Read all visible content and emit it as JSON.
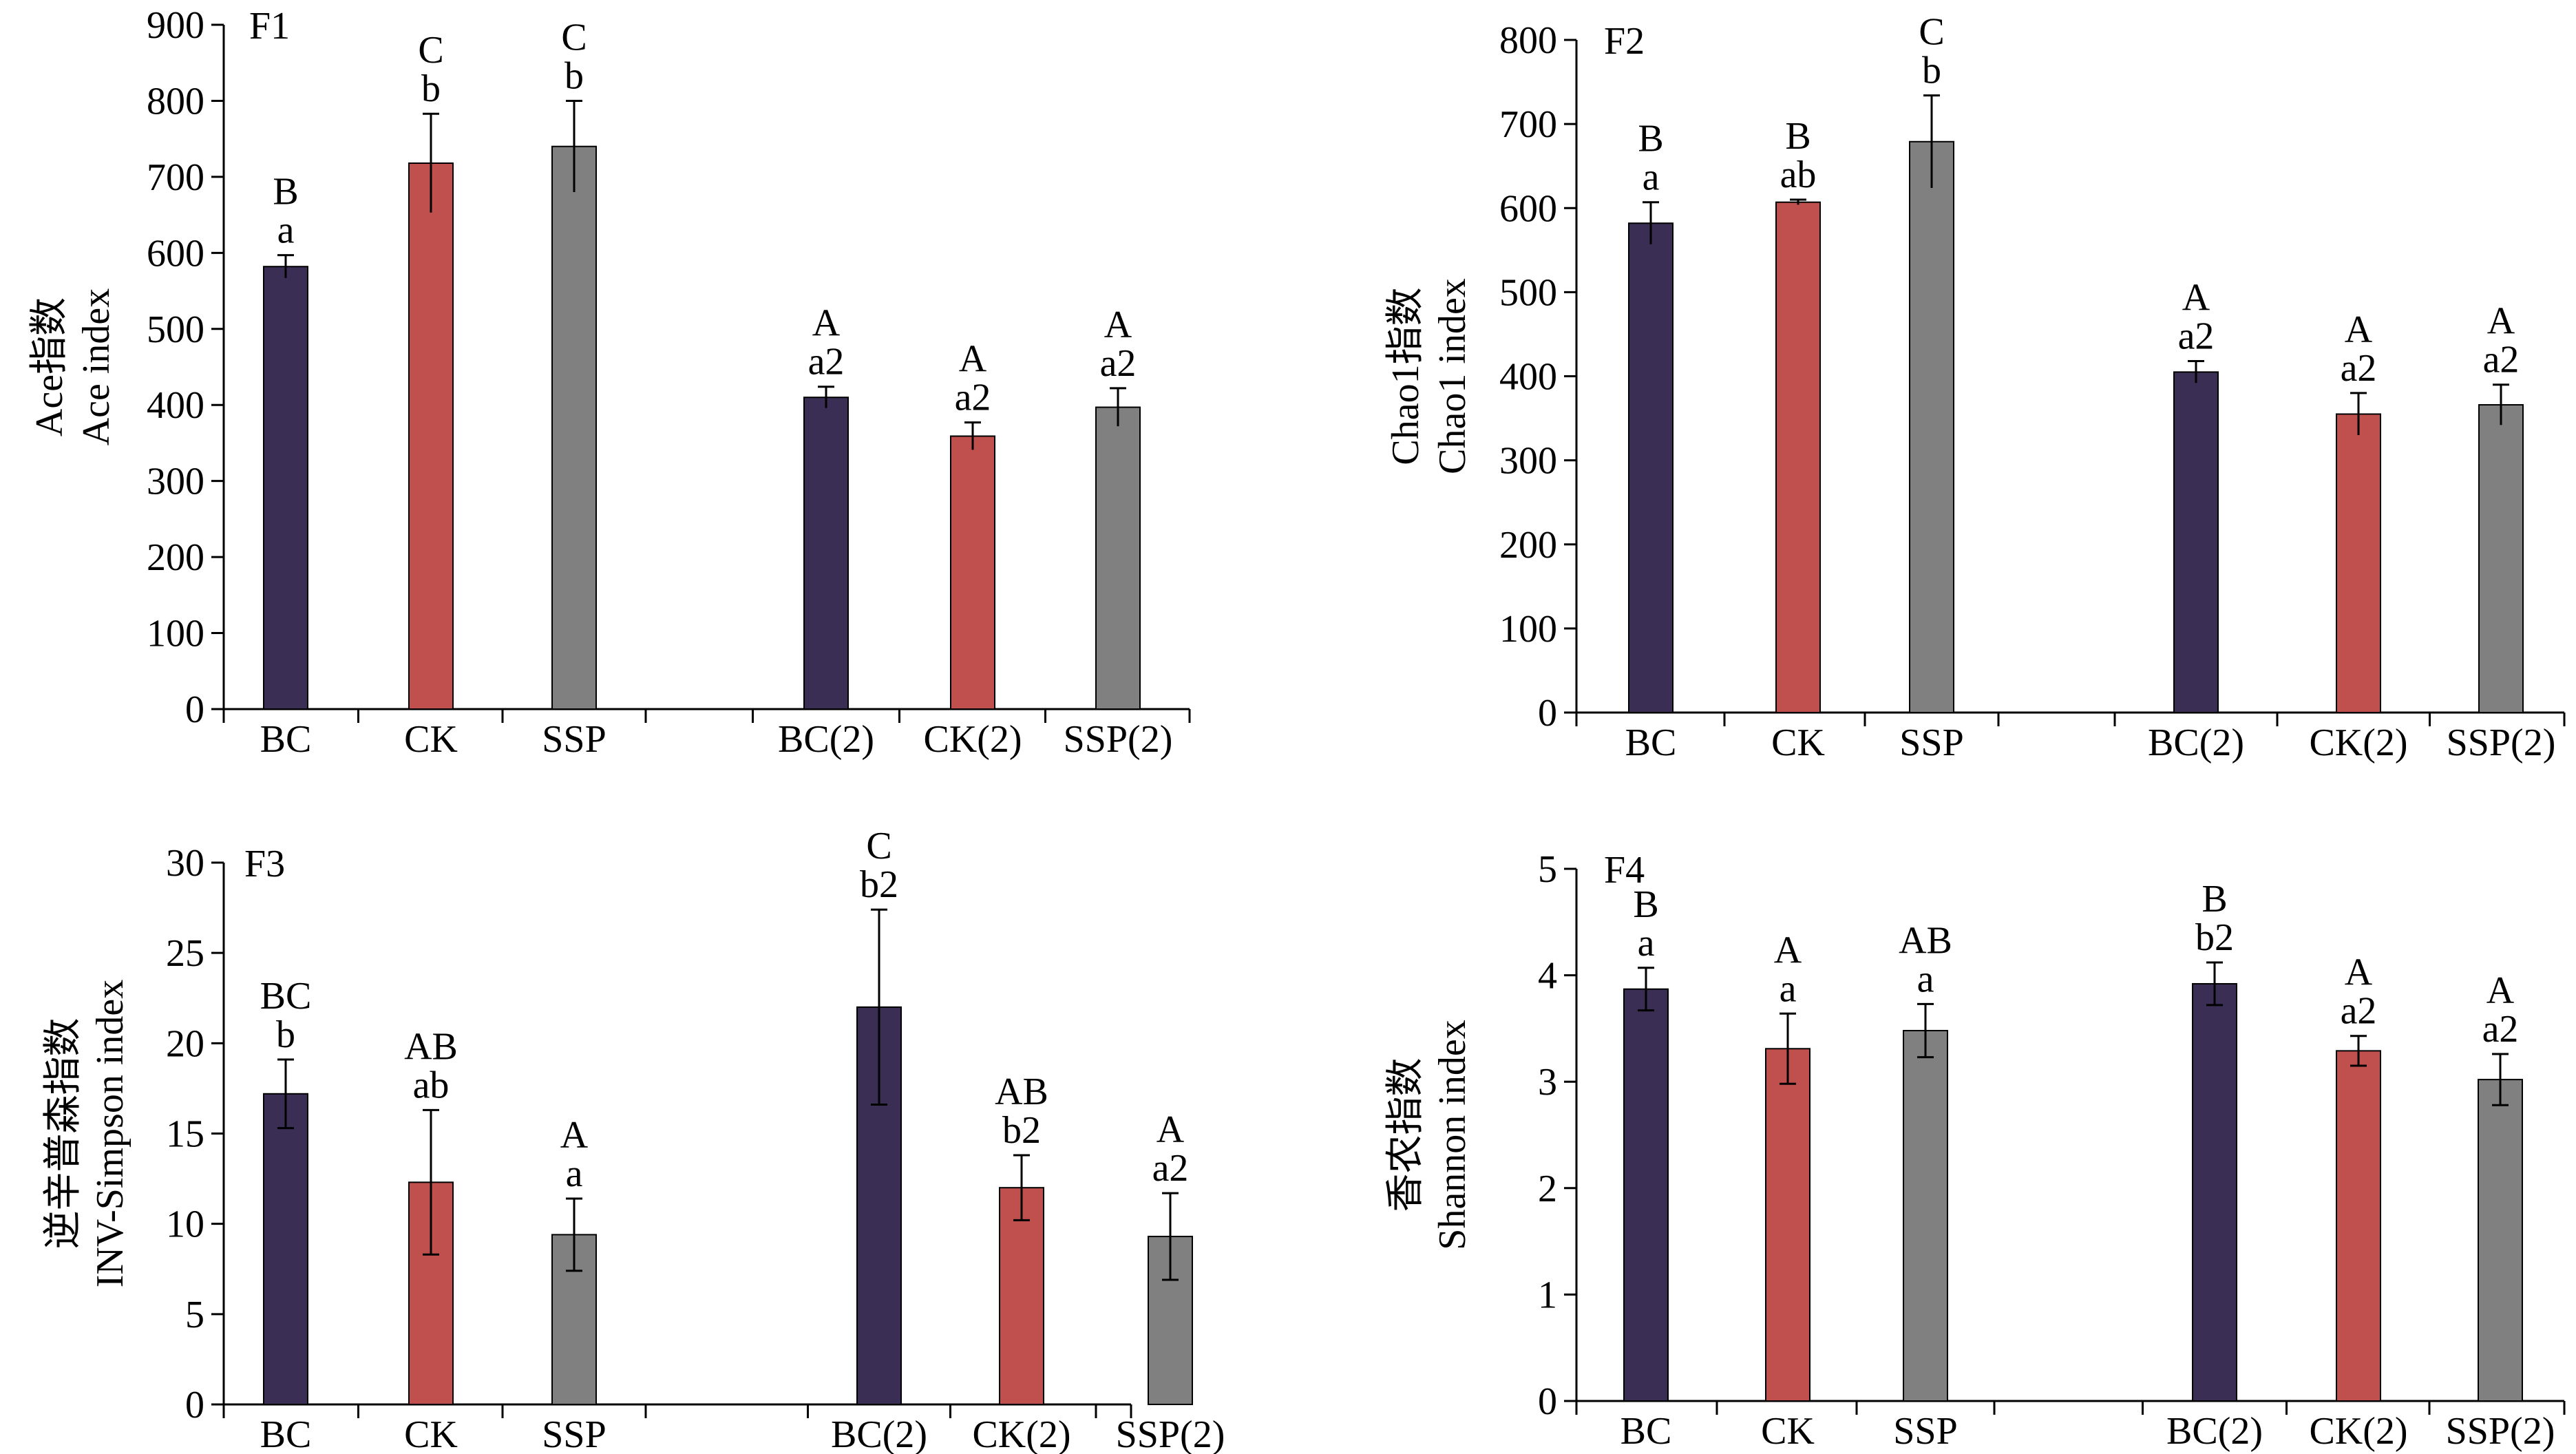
{
  "colors": {
    "BC": "#3b2e54",
    "CK": "#c0504d",
    "SSP": "#808080"
  },
  "chart_data": [
    {
      "type": "bar",
      "panel": "F1",
      "ylabel": [
        "Ace指数",
        "Ace index"
      ],
      "ylim": [
        0,
        900
      ],
      "yticks": [
        0,
        100,
        200,
        300,
        400,
        500,
        600,
        700,
        800,
        900
      ],
      "categories": [
        "BC",
        "CK",
        "SSP",
        "BC(2)",
        "CK(2)",
        "SSP(2)"
      ],
      "values": [
        582,
        718,
        740,
        410,
        359,
        397
      ],
      "errors": [
        15,
        65,
        60,
        14,
        18,
        25
      ],
      "letters": [
        [
          "B",
          "a"
        ],
        [
          "C",
          "b"
        ],
        [
          "C",
          "b"
        ],
        [
          "A",
          "a2"
        ],
        [
          "A",
          "a2"
        ],
        [
          "A",
          "a2"
        ]
      ]
    },
    {
      "type": "bar",
      "panel": "F2",
      "ylabel": [
        "Chao1指数",
        "Chao1 index"
      ],
      "ylim": [
        0,
        800
      ],
      "yticks": [
        0,
        100,
        200,
        300,
        400,
        500,
        600,
        700,
        800
      ],
      "categories": [
        "BC",
        "CK",
        "SSP",
        "BC(2)",
        "CK(2)",
        "SSP(2)"
      ],
      "values": [
        582,
        607,
        679,
        405,
        355,
        366
      ],
      "errors": [
        25,
        3,
        55,
        13,
        25,
        24
      ],
      "letters": [
        [
          "B",
          "a"
        ],
        [
          "B",
          "ab"
        ],
        [
          "C",
          "b"
        ],
        [
          "A",
          "a2"
        ],
        [
          "A",
          "a2"
        ],
        [
          "A",
          "a2"
        ]
      ]
    },
    {
      "type": "bar",
      "panel": "F3",
      "ylabel": [
        "逆辛普森指数",
        "INV-Simpson index"
      ],
      "ylim": [
        0,
        30
      ],
      "yticks": [
        0,
        5,
        10,
        15,
        20,
        25,
        30
      ],
      "categories": [
        "BC",
        "CK",
        "SSP",
        "BC(2)",
        "CK(2)",
        "SSP(2)"
      ],
      "values": [
        17.2,
        12.3,
        9.4,
        22,
        12,
        9.3
      ],
      "errors": [
        1.9,
        4.0,
        2.0,
        5.4,
        1.8,
        2.4
      ],
      "letters": [
        [
          "BC",
          "b"
        ],
        [
          "AB",
          "ab"
        ],
        [
          "A",
          "a"
        ],
        [
          "C",
          "b2"
        ],
        [
          "AB",
          "b2"
        ],
        [
          "A",
          "a2"
        ]
      ]
    },
    {
      "type": "bar",
      "panel": "F4",
      "ylabel": [
        "香农指数",
        "Shannon index"
      ],
      "ylim": [
        0,
        5
      ],
      "yticks": [
        0,
        1,
        2,
        3,
        4,
        5
      ],
      "categories": [
        "BC",
        "CK",
        "SSP",
        "BC(2)",
        "CK(2)",
        "SSP(2)"
      ],
      "values": [
        3.87,
        3.31,
        3.48,
        3.92,
        3.29,
        3.02
      ],
      "errors": [
        0.2,
        0.33,
        0.25,
        0.2,
        0.14,
        0.24
      ],
      "letters": [
        [
          "B",
          "a"
        ],
        [
          "A",
          "a"
        ],
        [
          "AB",
          "a"
        ],
        [
          "B",
          "b2"
        ],
        [
          "A",
          "a2"
        ],
        [
          "A",
          "a2"
        ]
      ]
    }
  ]
}
